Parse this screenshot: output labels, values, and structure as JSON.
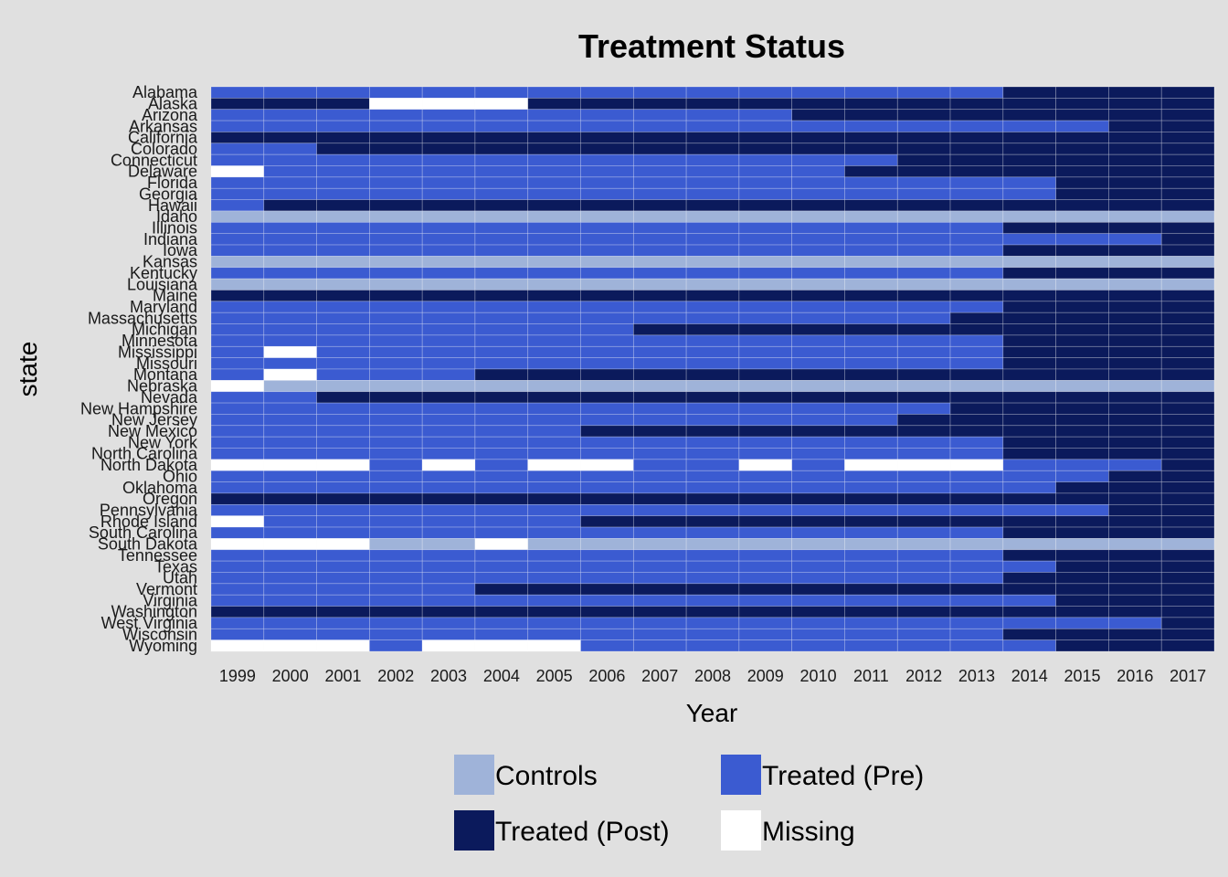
{
  "chart_data": {
    "type": "heatmap",
    "title": "Treatment Status",
    "xlabel": "Year",
    "ylabel": "state",
    "years": [
      "1999",
      "2000",
      "2001",
      "2002",
      "2003",
      "2004",
      "2005",
      "2006",
      "2007",
      "2008",
      "2009",
      "2010",
      "2011",
      "2012",
      "2013",
      "2014",
      "2015",
      "2016",
      "2017"
    ],
    "states": [
      "Alabama",
      "Alaska",
      "Arizona",
      "Arkansas",
      "California",
      "Colorado",
      "Connecticut",
      "Delaware",
      "Florida",
      "Georgia",
      "Hawaii",
      "Idaho",
      "Illinois",
      "Indiana",
      "Iowa",
      "Kansas",
      "Kentucky",
      "Louisiana",
      "Maine",
      "Maryland",
      "Massachusetts",
      "Michigan",
      "Minnesota",
      "Mississippi",
      "Missouri",
      "Montana",
      "Nebraska",
      "Nevada",
      "New Hampshire",
      "New Jersey",
      "New Mexico",
      "New York",
      "North Carolina",
      "North Dakota",
      "Ohio",
      "Oklahoma",
      "Oregon",
      "Pennsylvania",
      "Rhode Island",
      "South Carolina",
      "South Dakota",
      "Tennessee",
      "Texas",
      "Utah",
      "Vermont",
      "Virginia",
      "Washington",
      "West Virginia",
      "Wisconsin",
      "Wyoming"
    ],
    "codes": {
      "C": "Controls",
      "R": "Treated (Pre)",
      "T": "Treated (Post)",
      "M": "Missing"
    },
    "colors": {
      "C": "#9fb3d9",
      "R": "#3b5bd1",
      "T": "#0b1a5c",
      "M": "#ffffff"
    },
    "rows": [
      "RRRRRRRRRRRRRRRTTTT",
      "TTTMMMTTTTTTTTTTTTT",
      "RRRRRRRRRRRTTTTTTTT",
      "RRRRRRRRRRRRRRRRRTT",
      "TTTTTTTTTTTTTTTTTTT",
      "RRTTTTTTTTTTTTTTTTT",
      "RRRRRRRRRRRRRTTTTTT",
      "MRRRRRRRRRRRTTTTTTT",
      "RRRRRRRRRRRRRRRRTTT",
      "RRRRRRRRRRRRRRRRTTT",
      "RTTTTTTTTTTTTTTTTTT",
      "CCCCCCCCCCCCCCCCCCC",
      "RRRRRRRRRRRRRRRTTTT",
      "RRRRRRRRRRRRRRRRRRT",
      "RRRRRRRRRRRRRRRTTTT",
      "CCCCCCCCCCCCCCCCCCC",
      "RRRRRRRRRRRRRRRTTTT",
      "CCCCCCCCCCCCCCCCCCC",
      "TTTTTTTTTTTTTTTTTTT",
      "RRRRRRRRRRRRRRRTTTT",
      "RRRRRRRRRRRRRRTTTTT",
      "RRRRRRRRTTTTTTTTTTT",
      "RRRRRRRRRRRRRRRTTTT",
      "RMRRRRRRRRRRRRRTTTT",
      "RRRRRRRRRRRRRRRTTTT",
      "RMRRRTTTTTTTTTTTTTT",
      "MCCCCCCCCCCCCCCCCCC",
      "RRTTTTTTTTTTTTTTTTT",
      "RRRRRRRRRRRRRRTTTTT",
      "RRRRRRRRRRRRRTTTTTT",
      "RRRRRRRTTTTTTTTTTTT",
      "RRRRRRRRRRRRRRRTTTT",
      "RRRRRRRRRRRRRRRTTTT",
      "MMMRMRMMRRMRMMMRRRT",
      "RRRRRRRRRRRRRRRRRTT",
      "RRRRRRRRRRRRRRRRTTT",
      "TTTTTTTTTTTTTTTTTTT",
      "RRRRRRRRRRRRRRRRRTT",
      "MRRRRRRTTTTTTTTTTTT",
      "RRRRRRRRRRRRRRRTTTT",
      "MMMCCMCCCCCCCCCCCCC",
      "RRRRRRRRRRRRRRRTTTT",
      "RRRRRRRRRRRRRRRRTTT",
      "RRRRRRRRRRRRRRRTTTT",
      "RRRRRTTTTTTTTTTTTTT",
      "RRRRRRRRRRRRRRRRTTT",
      "TTTTTTTTTTTTTTTTTTT",
      "RRRRRRRRRRRRRRRRRRT",
      "RRRRRRRRRRRRRRRTTTT",
      "MMMRMMMRRRRRRRRRTTT"
    ],
    "legend": [
      {
        "label": "Controls",
        "code": "C"
      },
      {
        "label": "Treated (Pre)",
        "code": "R"
      },
      {
        "label": "Treated (Post)",
        "code": "T"
      },
      {
        "label": "Missing",
        "code": "M"
      }
    ],
    "legend_position": "bottom",
    "grid": true
  }
}
